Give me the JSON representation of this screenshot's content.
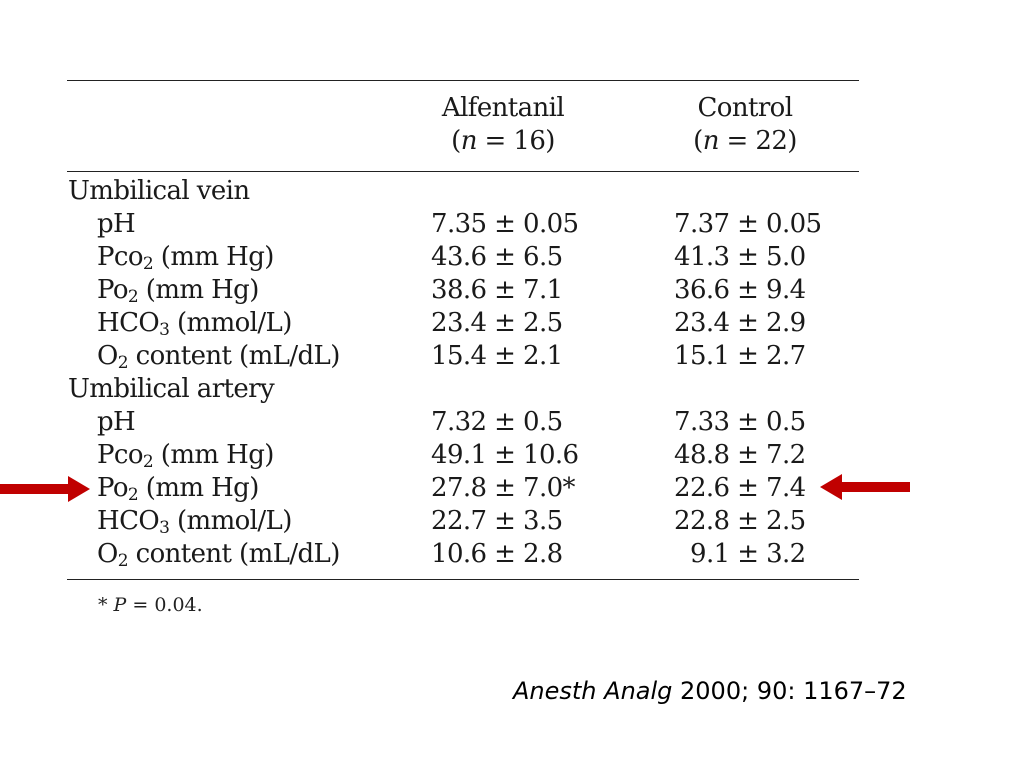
{
  "table": {
    "headers": {
      "alfentanil_name": "Alfentanil",
      "alfentanil_n": "(n = 16)",
      "control_name": "Control",
      "control_n": "(n = 22)"
    },
    "groups": [
      {
        "label": "Umbilical vein",
        "rows": [
          {
            "label_main": "pH",
            "label_sub": "",
            "label_rest": "",
            "alfentanil": "7.35 ± 0.05",
            "control": "7.37 ± 0.05"
          },
          {
            "label_main": "Pco",
            "label_sub": "2",
            "label_rest": " (mm Hg)",
            "alfentanil": "43.6 ± 6.5",
            "control": "41.3 ± 5.0"
          },
          {
            "label_main": "Po",
            "label_sub": "2",
            "label_rest": " (mm Hg)",
            "alfentanil": "38.6 ± 7.1",
            "control": "36.6 ± 9.4"
          },
          {
            "label_main": "HCO",
            "label_sub": "3",
            "label_rest": " (mmol/L)",
            "alfentanil": "23.4 ± 2.5",
            "control": "23.4 ± 2.9"
          },
          {
            "label_main": "O",
            "label_sub": "2",
            "label_rest": " content (mL/dL)",
            "alfentanil": "15.4 ± 2.1",
            "control": "15.1 ± 2.7"
          }
        ]
      },
      {
        "label": "Umbilical artery",
        "rows": [
          {
            "label_main": "pH",
            "label_sub": "",
            "label_rest": "",
            "alfentanil": "7.32 ± 0.5",
            "control": "7.33 ± 0.5"
          },
          {
            "label_main": "Pco",
            "label_sub": "2",
            "label_rest": " (mm Hg)",
            "alfentanil": "49.1 ± 10.6",
            "control": "48.8 ± 7.2"
          },
          {
            "label_main": "Po",
            "label_sub": "2",
            "label_rest": " (mm Hg)",
            "alfentanil": "27.8 ± 7.0*",
            "control": "22.6 ± 7.4"
          },
          {
            "label_main": "HCO",
            "label_sub": "3",
            "label_rest": " (mmol/L)",
            "alfentanil": "22.7 ± 3.5",
            "control": "22.8 ± 2.5"
          },
          {
            "label_main": "O",
            "label_sub": "2",
            "label_rest": " content (mL/dL)",
            "alfentanil": "10.6 ± 2.8",
            "control": "9.1 ± 3.2"
          }
        ]
      }
    ],
    "footnote": "* P = 0.04."
  },
  "citation": {
    "journal": "Anesth Analg",
    "details": " 2000; 90: 1167–72"
  },
  "arrows": {
    "color": "#c00000",
    "left_icon": "right-arrow-icon",
    "right_icon": "left-arrow-icon"
  }
}
